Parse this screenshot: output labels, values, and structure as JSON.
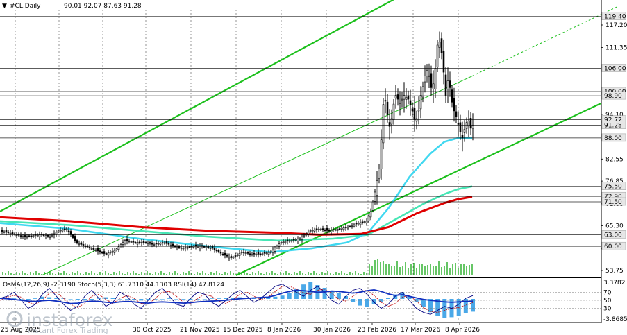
{
  "header": {
    "symbol": "#CL,Daily",
    "ohlc": "90.01 92.07 87.63 91.28"
  },
  "watermark": {
    "brand": "instaforex",
    "tagline": "Instant Forex Trading"
  },
  "indicator_header": "OsMA(12,26,9) -2.3190  Stoch(5,3,3) 61.7310 44.1303  RSI(14) 47.8124",
  "colors": {
    "candle": "#000000",
    "bullish_body": "#ffffff",
    "ema_red": "#e00000",
    "ema_cyan": "#40d8f0",
    "ema_teal": "#46e6b5",
    "channel": "#1cc01c",
    "grid": "#000000",
    "volume": "#00a000",
    "osma": "#4aa8e8",
    "stoch_main": "#000080",
    "stoch_signal": "#c00000",
    "rsi": "#1030c0"
  },
  "chart_data": {
    "type": "candlestick",
    "y_ticks": [
      "117.20",
      "111.35",
      "94.10",
      "82.55",
      "76.85",
      "71.00",
      "65.30",
      "59.45",
      "53.75"
    ],
    "price_levels": [
      "119.40",
      "106.00",
      "100.00",
      "98.90",
      "92.72",
      "91.28",
      "88.00",
      "75.50",
      "72.90",
      "71.50",
      "63.00",
      "60.00"
    ],
    "x_labels": [
      "25 Aug 2025",
      "30 Oct 2025",
      "21 Nov 2025",
      "15 Dec 2025",
      "8 Jan 2026",
      "30 Jan 2026",
      "23 Feb 2026",
      "17 Mar 2026",
      "8 Apr 2026"
    ],
    "ylim": [
      52.5,
      121.5
    ],
    "close_path": [
      [
        0,
        64
      ],
      [
        12,
        63.5
      ],
      [
        24,
        63
      ],
      [
        36,
        62.5
      ],
      [
        48,
        62.8
      ],
      [
        60,
        63
      ],
      [
        72,
        62.5
      ],
      [
        84,
        64
      ],
      [
        96,
        64.5
      ],
      [
        110,
        61
      ],
      [
        124,
        60
      ],
      [
        138,
        59
      ],
      [
        152,
        58
      ],
      [
        166,
        59
      ],
      [
        180,
        61.5
      ],
      [
        194,
        61
      ],
      [
        208,
        61
      ],
      [
        222,
        60.5
      ],
      [
        236,
        61
      ],
      [
        250,
        60
      ],
      [
        264,
        59.5
      ],
      [
        278,
        60
      ],
      [
        292,
        60
      ],
      [
        306,
        59.5
      ],
      [
        320,
        58
      ],
      [
        334,
        57
      ],
      [
        348,
        58.5
      ],
      [
        362,
        58
      ],
      [
        376,
        58
      ],
      [
        390,
        58.5
      ],
      [
        404,
        61
      ],
      [
        418,
        61.5
      ],
      [
        432,
        62
      ],
      [
        446,
        64
      ],
      [
        460,
        64.5
      ],
      [
        474,
        64
      ],
      [
        488,
        64.5
      ],
      [
        502,
        65
      ],
      [
        516,
        66
      ],
      [
        528,
        66.5
      ],
      [
        534,
        69
      ],
      [
        540,
        74
      ],
      [
        546,
        80
      ],
      [
        550,
        90
      ],
      [
        553,
        100
      ],
      [
        557,
        95
      ],
      [
        562,
        90
      ],
      [
        566,
        96
      ],
      [
        570,
        99
      ],
      [
        576,
        97
      ],
      [
        582,
        99
      ],
      [
        588,
        98
      ],
      [
        594,
        95
      ],
      [
        598,
        92
      ],
      [
        602,
        94
      ],
      [
        606,
        99
      ],
      [
        610,
        102
      ],
      [
        614,
        106
      ],
      [
        618,
        104
      ],
      [
        622,
        100
      ],
      [
        626,
        104
      ],
      [
        630,
        112
      ],
      [
        634,
        113
      ],
      [
        638,
        107
      ],
      [
        642,
        99
      ],
      [
        646,
        104
      ],
      [
        650,
        98
      ],
      [
        654,
        95
      ],
      [
        658,
        93
      ],
      [
        662,
        90
      ],
      [
        666,
        88
      ],
      [
        670,
        91
      ],
      [
        674,
        93
      ],
      [
        678,
        90.5
      ],
      [
        681,
        91.28
      ]
    ],
    "ema_cyan": [
      [
        0,
        66
      ],
      [
        100,
        64.5
      ],
      [
        200,
        62
      ],
      [
        300,
        60
      ],
      [
        390,
        58.5
      ],
      [
        450,
        59.5
      ],
      [
        500,
        61
      ],
      [
        530,
        63.5
      ],
      [
        560,
        70
      ],
      [
        590,
        78
      ],
      [
        620,
        84
      ],
      [
        640,
        87
      ],
      [
        660,
        88
      ],
      [
        680,
        88
      ]
    ],
    "ema_teal": [
      [
        0,
        66.5
      ],
      [
        100,
        65.5
      ],
      [
        200,
        64
      ],
      [
        300,
        62.5
      ],
      [
        400,
        61.5
      ],
      [
        480,
        62
      ],
      [
        530,
        63
      ],
      [
        570,
        67
      ],
      [
        610,
        71
      ],
      [
        640,
        73.5
      ],
      [
        660,
        74.8
      ],
      [
        680,
        75.5
      ]
    ],
    "ema_red": [
      [
        0,
        67.5
      ],
      [
        100,
        66.5
      ],
      [
        200,
        65
      ],
      [
        300,
        64
      ],
      [
        400,
        63.5
      ],
      [
        460,
        63
      ],
      [
        520,
        63.2
      ],
      [
        560,
        65
      ],
      [
        600,
        68.5
      ],
      [
        640,
        71.2
      ],
      [
        660,
        72.2
      ],
      [
        680,
        72.8
      ]
    ],
    "channel_lines": [
      {
        "name": "upper",
        "points": [
          [
            0,
            69
          ],
          [
            590,
            126
          ]
        ]
      },
      {
        "name": "middle",
        "points": [
          [
            60,
            52.5
          ],
          [
            680,
            104
          ]
        ]
      },
      {
        "name": "middle-ext",
        "points": [
          [
            680,
            104
          ],
          [
            890,
            122
          ]
        ]
      },
      {
        "name": "lower",
        "points": [
          [
            340,
            52.5
          ],
          [
            866,
            97
          ]
        ]
      }
    ],
    "indicator": {
      "labels": [
        "3.3782",
        "70",
        "50",
        "30",
        "-3.8685"
      ],
      "osma_range": [
        -3.8685,
        3.3782
      ],
      "osma": [
        0.1,
        0.2,
        0.1,
        -0.1,
        -0.2,
        0.1,
        0.4,
        0.3,
        0.2,
        0.1,
        0.0,
        -0.2,
        -0.3,
        -0.2,
        0.1,
        0.3,
        0.2,
        0.0,
        -0.1,
        -0.2,
        -0.3,
        -0.2,
        -0.1,
        0.0,
        0.1,
        0.0,
        -0.1,
        -0.2,
        -0.1,
        0.0,
        0.1,
        0.1,
        0.2,
        0.2,
        0.3,
        0.2,
        0.1,
        0.2,
        0.3,
        0.4,
        0.6,
        1.0,
        1.8,
        2.6,
        3.0,
        2.5,
        2.0,
        1.5,
        1.0,
        0.5,
        -0.5,
        -1.2,
        -1.5,
        -1.0,
        -0.5,
        0.2,
        0.8,
        1.2,
        0.5,
        -0.5,
        -1.5,
        -2.4,
        -3.0,
        -3.5,
        -3.3,
        -3.0,
        -2.6,
        -2.3
      ],
      "stoch_main": [
        55,
        60,
        70,
        50,
        30,
        40,
        65,
        80,
        60,
        40,
        25,
        35,
        60,
        75,
        55,
        35,
        45,
        70,
        60,
        40,
        30,
        50,
        70,
        80,
        60,
        40,
        35,
        55,
        70,
        65,
        45,
        35,
        50,
        65,
        75,
        60,
        45,
        55,
        70,
        85,
        90,
        80,
        70,
        60,
        75,
        85,
        70,
        50,
        40,
        60,
        75,
        80,
        65,
        45,
        30,
        40,
        60,
        70,
        50,
        30,
        20,
        15,
        25,
        35,
        30,
        40,
        55,
        61.7
      ],
      "stoch_signal": [
        50,
        58,
        62,
        58,
        45,
        40,
        50,
        68,
        70,
        55,
        40,
        32,
        42,
        60,
        65,
        52,
        42,
        55,
        62,
        55,
        42,
        40,
        55,
        70,
        72,
        60,
        45,
        42,
        55,
        65,
        60,
        48,
        42,
        52,
        65,
        70,
        60,
        52,
        58,
        72,
        85,
        85,
        78,
        68,
        65,
        75,
        78,
        68,
        52,
        48,
        60,
        72,
        75,
        62,
        45,
        35,
        42,
        58,
        62,
        48,
        32,
        22,
        20,
        25,
        30,
        32,
        38,
        44.1
      ],
      "rsi": [
        55,
        54,
        52,
        50,
        48,
        47,
        49,
        50,
        48,
        45,
        42,
        43,
        46,
        48,
        47,
        45,
        44,
        46,
        47,
        46,
        44,
        43,
        45,
        46,
        45,
        44,
        43,
        44,
        46,
        47,
        48,
        49,
        50,
        52,
        54,
        55,
        56,
        57,
        58,
        62,
        68,
        72,
        75,
        74,
        72,
        70,
        71,
        73,
        72,
        70,
        68,
        70,
        74,
        76,
        72,
        66,
        62,
        64,
        60,
        56,
        52,
        50,
        48,
        46,
        45,
        46,
        47,
        47.8
      ]
    }
  }
}
